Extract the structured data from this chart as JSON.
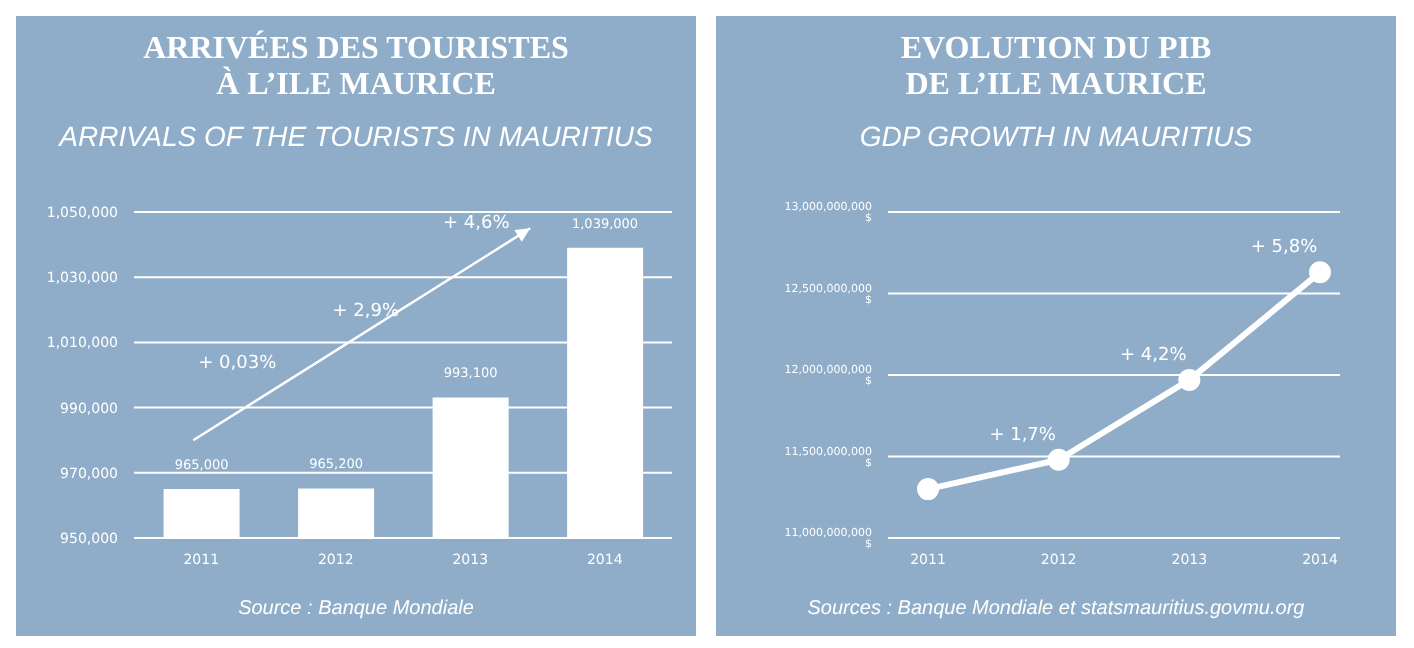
{
  "chart_data": [
    {
      "type": "bar",
      "title": "ARRIVÉES DES TOURISTES\nÀ L’ILE MAURICE",
      "subtitle": "ARRIVALS OF THE TOURISTS IN MAURITIUS",
      "categories": [
        "2011",
        "2012",
        "2013",
        "2014"
      ],
      "values": [
        965000,
        965200,
        993100,
        1039000
      ],
      "color": "#ffffff",
      "value_labels": [
        "965,000",
        "965,200",
        "993,100",
        "1,039,000"
      ],
      "ylim": [
        950000,
        1050000
      ],
      "yticks": [
        {
          "value": 950000,
          "label": "950,000"
        },
        {
          "value": 970000,
          "label": "970,000"
        },
        {
          "value": 990000,
          "label": "990,000"
        },
        {
          "value": 1010000,
          "label": "1,010,000"
        },
        {
          "value": 1030000,
          "label": "1,030,000"
        },
        {
          "value": 1050000,
          "label": "1,050,000"
        }
      ],
      "grid": "y",
      "annotations": [
        "+ 0,03%",
        "+ 2,9%",
        "+ 4,6%",
        "Source : Banque Mondiale"
      ]
    },
    {
      "type": "line",
      "title": "EVOLUTION DU PIB\nDE L’ILE MAURICE",
      "subtitle": "GDP GROWTH IN MAURITIUS",
      "categories": [
        "2011",
        "2012",
        "2013",
        "2014"
      ],
      "values": [
        11300000000,
        11480000000,
        11970000000,
        12630000000
      ],
      "color": "#ffffff",
      "ylim": [
        11000000000,
        13000000000
      ],
      "yticks": [
        {
          "value": 11000000000,
          "label": "11,000,000,000 $"
        },
        {
          "value": 11500000000,
          "label": "11,500,000,000 $"
        },
        {
          "value": 12000000000,
          "label": "12,000,000,000 $"
        },
        {
          "value": 12500000000,
          "label": "12,500,000,000 $"
        },
        {
          "value": 13000000000,
          "label": "13,000,000,000 $"
        }
      ],
      "grid": "y",
      "marker": "circle",
      "line_style": "solid",
      "annotations": [
        "+ 1,7%",
        "+ 4,2%",
        "+ 5,8%",
        "Sources : Banque Mondiale et statsmauritius.govmu.org"
      ]
    }
  ]
}
